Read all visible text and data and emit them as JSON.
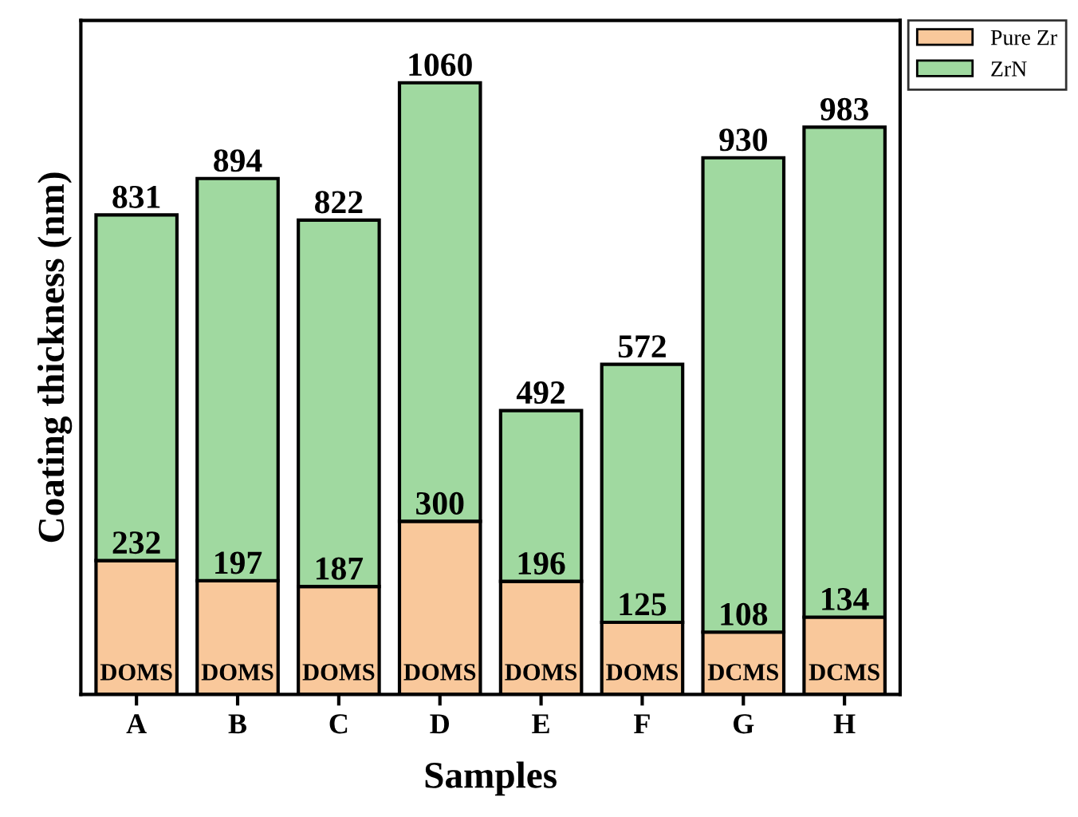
{
  "chart_data": {
    "type": "bar",
    "stacked": true,
    "xlabel": "Samples",
    "ylabel": "Coating thickness (nm)",
    "categories": [
      "A",
      "B",
      "C",
      "D",
      "E",
      "F",
      "G",
      "H"
    ],
    "series": [
      {
        "name": "Pure Zr",
        "color": "#f9c89b",
        "values": [
          232,
          197,
          187,
          300,
          196,
          125,
          108,
          134
        ],
        "value_labels": [
          "232",
          "197",
          "187",
          "300",
          "196",
          "125",
          "108",
          "134"
        ]
      },
      {
        "name": "ZrN",
        "color": "#a0d9a0",
        "values": [
          599,
          697,
          635,
          760,
          296,
          447,
          822,
          849
        ]
      }
    ],
    "totals": [
      "831",
      "894",
      "822",
      "1060",
      "492",
      "572",
      "930",
      "983"
    ],
    "ylim": [
      0,
      1168
    ],
    "tick_labels": "x",
    "grid": false,
    "legend": "top right",
    "annotations": [
      "DOMS",
      "DOMS",
      "DOMS",
      "DOMS",
      "DOMS",
      "DOMS",
      "DCMS",
      "DCMS"
    ]
  }
}
